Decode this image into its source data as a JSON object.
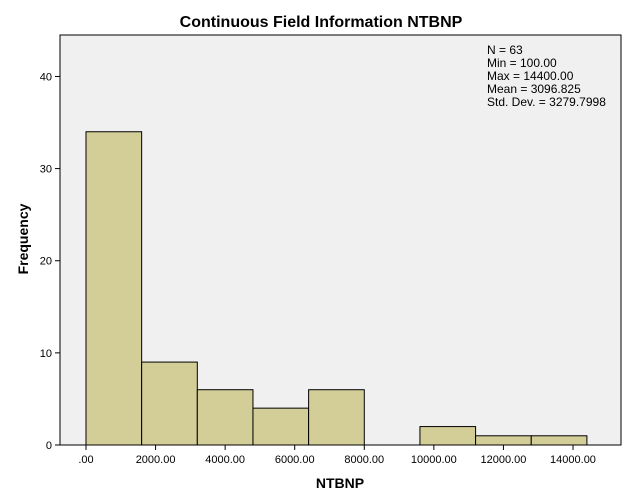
{
  "chart_data": {
    "type": "bar",
    "title": "Continuous Field Information NTBNP",
    "xlabel": "NTBNP",
    "ylabel": "Frequency",
    "bins": [
      {
        "start": 0,
        "end": 1600,
        "count": 34
      },
      {
        "start": 1600,
        "end": 3200,
        "count": 9
      },
      {
        "start": 3200,
        "end": 4800,
        "count": 6
      },
      {
        "start": 4800,
        "end": 6400,
        "count": 4
      },
      {
        "start": 6400,
        "end": 8000,
        "count": 6
      },
      {
        "start": 8000,
        "end": 9600,
        "count": 0
      },
      {
        "start": 9600,
        "end": 11200,
        "count": 2
      },
      {
        "start": 11200,
        "end": 12800,
        "count": 1
      },
      {
        "start": 12800,
        "end": 14400,
        "count": 1
      }
    ],
    "xlim": [
      0,
      15380
    ],
    "ylim": [
      0,
      44.5
    ],
    "x_ticks": [
      0,
      2000,
      4000,
      6000,
      8000,
      10000,
      12000,
      14000
    ],
    "x_tick_labels": [
      ".00",
      "2000.00",
      "4000.00",
      "6000.00",
      "8000.00",
      "10000.00",
      "12000.00",
      "14000.00"
    ],
    "y_ticks": [
      0,
      10,
      20,
      30,
      40
    ],
    "y_tick_labels": [
      "0",
      "10",
      "20",
      "30",
      "40"
    ],
    "grid": false,
    "legend": "none",
    "stats": [
      "N = 63",
      "Min = 100.00",
      "Max = 14400.00",
      "Mean = 3096.825",
      "Std. Dev. = 3279.7998"
    ],
    "colors": {
      "bar_fill": "#d3ce97",
      "bar_stroke": "#000000",
      "plot_background": "#f0f0f0",
      "plot_border": "#000000"
    }
  }
}
